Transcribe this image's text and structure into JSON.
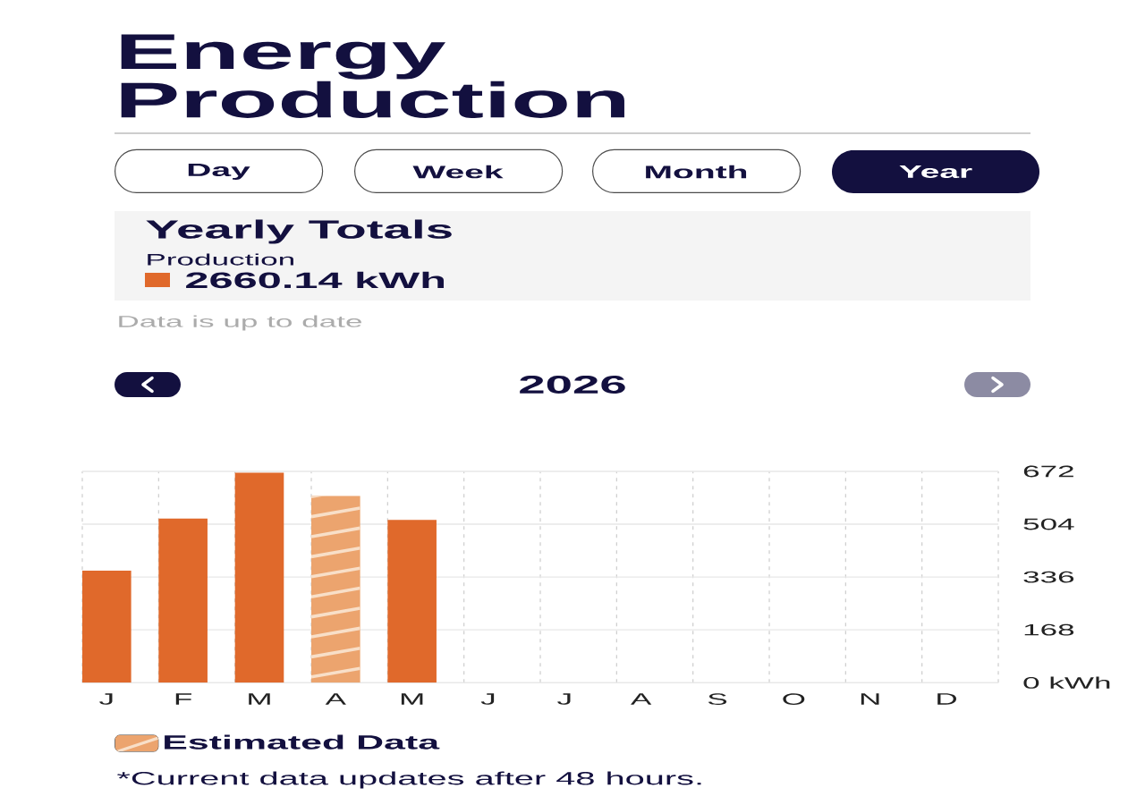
{
  "chart_data": {
    "type": "bar",
    "title": "Energy Production",
    "subtitle": "2026",
    "categories": [
      "J",
      "F",
      "M",
      "A",
      "M",
      "J",
      "J",
      "A",
      "S",
      "O",
      "N",
      "D"
    ],
    "series": [
      {
        "color": "#e0692b",
        "values": [
          356,
          522,
          668,
          null,
          518,
          null,
          null,
          null,
          null,
          null,
          null,
          null
        ]
      },
      {
        "name": "Estimated Data",
        "color": "#eca46e",
        "values": [
          null,
          null,
          null,
          594,
          null,
          null,
          null,
          null,
          null,
          null,
          null,
          null
        ]
      }
    ],
    "ylim": [
      0,
      672
    ],
    "yticks": [
      {
        "value": 0,
        "label": "0 kWh"
      },
      168,
      336,
      504,
      672
    ],
    "grid": true,
    "legend": "bottom",
    "annotations": [
      "Day",
      "Week",
      "Month",
      "Year",
      "Yearly Totals",
      "Production",
      "2660.14 kWh",
      "Data is up to date",
      "*Current data updates after 48 hours."
    ]
  }
}
